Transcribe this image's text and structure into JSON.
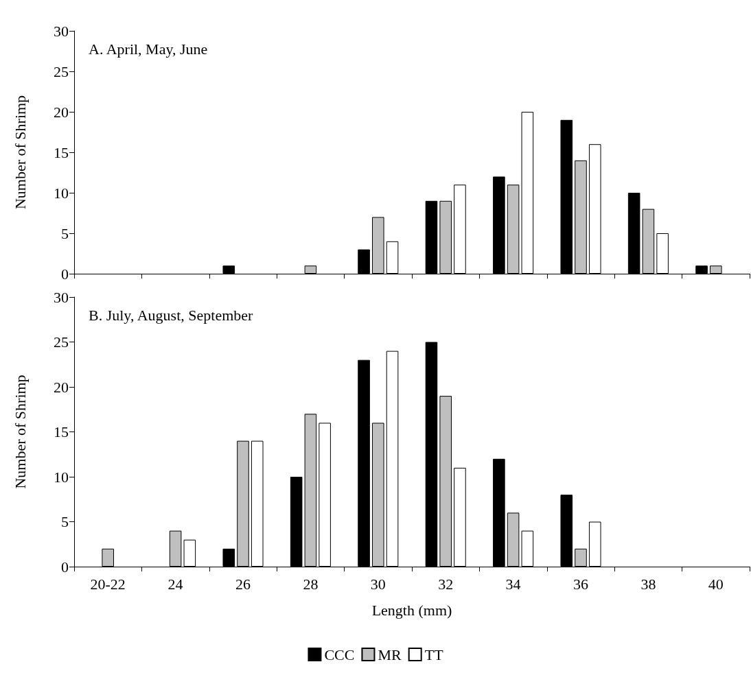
{
  "chart_data": [
    {
      "type": "bar",
      "title": "A. April, May, June",
      "ylabel": "Number of Shrimp",
      "categories": [
        null,
        null,
        null,
        null,
        null,
        null,
        null,
        null,
        null,
        null
      ],
      "series": [
        {
          "color": "#000000",
          "values": [
            0,
            0,
            1,
            0,
            3,
            9,
            12,
            19,
            10,
            1
          ]
        },
        {
          "color": "#bfbfbf",
          "values": [
            0,
            0,
            0,
            1,
            7,
            9,
            11,
            14,
            8,
            1
          ]
        },
        {
          "color": "#ffffff",
          "values": [
            0,
            0,
            0,
            0,
            4,
            11,
            20,
            16,
            5,
            0
          ]
        }
      ],
      "ylim": [
        0,
        30
      ],
      "yticks": [
        0,
        5,
        10,
        15,
        20,
        25,
        30
      ],
      "legend": false
    },
    {
      "type": "bar",
      "title": "B. July, August, September",
      "xlabel": "Length (mm)",
      "ylabel": "Number of Shrimp",
      "categories": [
        "20-22",
        "24",
        "26",
        "28",
        "30",
        "32",
        "34",
        "36",
        "38",
        "40"
      ],
      "series": [
        {
          "name": "CCC",
          "color": "#000000",
          "values": [
            0,
            0,
            2,
            10,
            23,
            25,
            12,
            8,
            0,
            0
          ]
        },
        {
          "name": "MR",
          "color": "#bfbfbf",
          "values": [
            2,
            4,
            14,
            17,
            16,
            19,
            6,
            2,
            0,
            0
          ]
        },
        {
          "name": "TT",
          "color": "#ffffff",
          "values": [
            0,
            3,
            14,
            16,
            24,
            11,
            4,
            5,
            0,
            0
          ]
        }
      ],
      "ylim": [
        0,
        30
      ],
      "yticks": [
        0,
        5,
        10,
        15,
        20,
        25,
        30
      ],
      "legend": "bottom"
    }
  ]
}
